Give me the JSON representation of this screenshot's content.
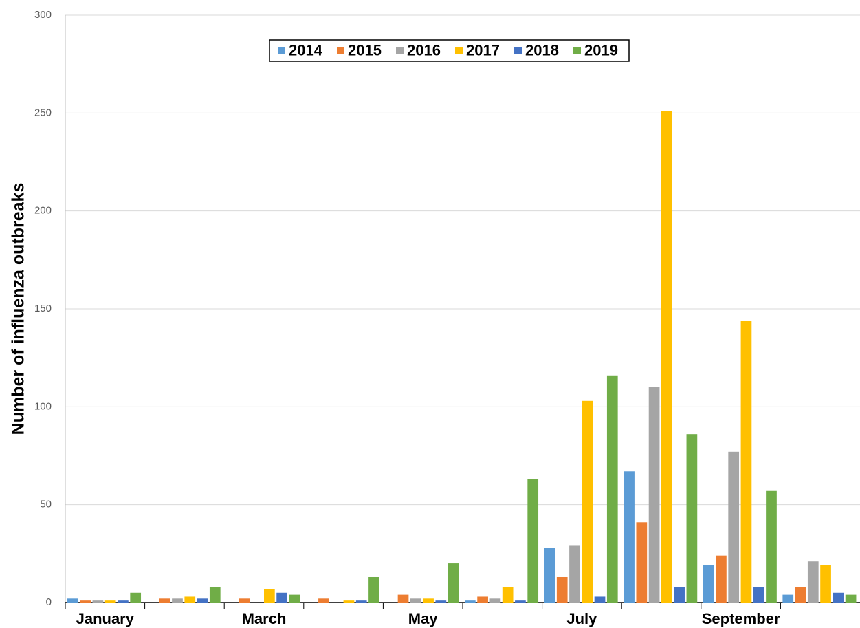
{
  "chart_data": {
    "type": "bar",
    "y_label": "Number of influenza outbreaks",
    "categories": [
      "January",
      null,
      "March",
      null,
      "May",
      null,
      "July",
      null,
      "September",
      null
    ],
    "series": [
      {
        "name": "2014",
        "color": "#5b9bd5",
        "values": [
          2,
          0,
          0,
          0,
          0,
          1,
          28,
          67,
          19,
          4
        ]
      },
      {
        "name": "2015",
        "color": "#ed7d31",
        "values": [
          1,
          2,
          2,
          2,
          4,
          3,
          13,
          41,
          24,
          8
        ]
      },
      {
        "name": "2016",
        "color": "#a5a5a5",
        "values": [
          1,
          2,
          0,
          0,
          2,
          2,
          29,
          110,
          77,
          21
        ]
      },
      {
        "name": "2017",
        "color": "#ffc000",
        "values": [
          1,
          3,
          7,
          1,
          2,
          8,
          103,
          251,
          144,
          19
        ]
      },
      {
        "name": "2018",
        "color": "#4472c4",
        "values": [
          1,
          2,
          5,
          1,
          1,
          1,
          3,
          8,
          8,
          5
        ]
      },
      {
        "name": "2019",
        "color": "#70ad47",
        "values": [
          5,
          8,
          4,
          13,
          20,
          63,
          116,
          86,
          57,
          4
        ]
      }
    ],
    "ylim": [
      0,
      300
    ],
    "yticks": [
      0,
      50,
      100,
      150,
      200,
      250,
      300
    ],
    "grid": true
  }
}
